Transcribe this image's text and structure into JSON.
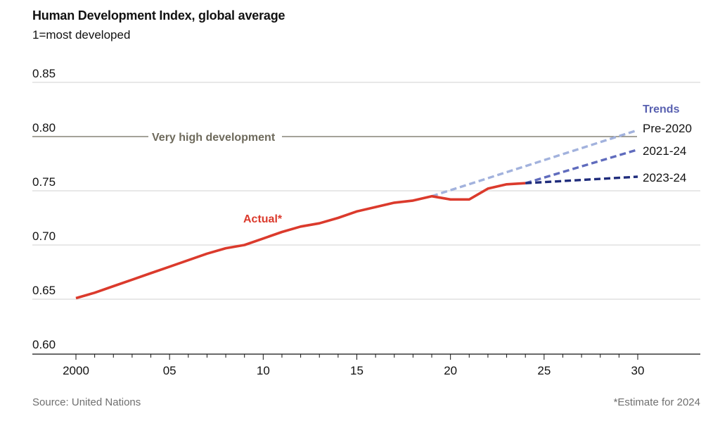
{
  "header": {
    "title": "Human Development Index, global average",
    "subtitle": "1=most developed"
  },
  "footer": {
    "source": "Source: United Nations",
    "note": "*Estimate for 2024"
  },
  "chart_data": {
    "type": "line",
    "title": "Human Development Index, global average",
    "subtitle": "1=most developed",
    "xlabel": "",
    "ylabel": "",
    "xlim": [
      1997.5,
      2033.3
    ],
    "ylim": [
      0.6,
      0.85
    ],
    "grid": true,
    "y_ticks": [
      0.6,
      0.65,
      0.7,
      0.75,
      0.8,
      0.85
    ],
    "y_tick_labels": [
      "0.60",
      "0.65",
      "0.70",
      "0.75",
      "0.80",
      "0.85"
    ],
    "x_ticks": [
      2000,
      2005,
      2010,
      2015,
      2020,
      2025,
      2030
    ],
    "x_tick_labels": [
      "2000",
      "05",
      "10",
      "15",
      "20",
      "25",
      "30"
    ],
    "x_minor_ticks_every": 1,
    "reference_line": {
      "label": "Very high development",
      "value": 0.8,
      "color": "#6e6a5c"
    },
    "series": [
      {
        "name": "Actual*",
        "color": "#db3a2c",
        "style": "solid",
        "x": [
          2000,
          2001,
          2002,
          2003,
          2004,
          2005,
          2006,
          2007,
          2008,
          2009,
          2010,
          2011,
          2012,
          2013,
          2014,
          2015,
          2016,
          2017,
          2018,
          2019,
          2020,
          2021,
          2022,
          2023,
          2024
        ],
        "values": [
          0.651,
          0.656,
          0.662,
          0.668,
          0.674,
          0.68,
          0.686,
          0.692,
          0.697,
          0.7,
          0.706,
          0.712,
          0.717,
          0.72,
          0.725,
          0.731,
          0.735,
          0.739,
          0.741,
          0.745,
          0.742,
          0.742,
          0.752,
          0.756,
          0.757
        ]
      },
      {
        "name": "Pre-2020",
        "color": "#a2b2dd",
        "style": "dashed",
        "x": [
          2019,
          2030
        ],
        "values": [
          0.745,
          0.806
        ]
      },
      {
        "name": "2021-24",
        "color": "#5f6bbd",
        "style": "dashed",
        "x": [
          2024,
          2030
        ],
        "values": [
          0.757,
          0.788
        ]
      },
      {
        "name": "2023-24",
        "color": "#1f2c7c",
        "style": "dashed",
        "x": [
          2024,
          2030
        ],
        "values": [
          0.757,
          0.763
        ]
      }
    ],
    "legend": {
      "title": "Trends",
      "placement": "right",
      "entries": [
        "Pre-2020",
        "2021-24",
        "2023-24"
      ]
    },
    "annotations": [
      {
        "text": "Actual*",
        "series": "Actual*"
      }
    ],
    "colors": {
      "grid": "#d9d9d9",
      "axis": "#121212",
      "trends_title": "#5860b0"
    }
  }
}
